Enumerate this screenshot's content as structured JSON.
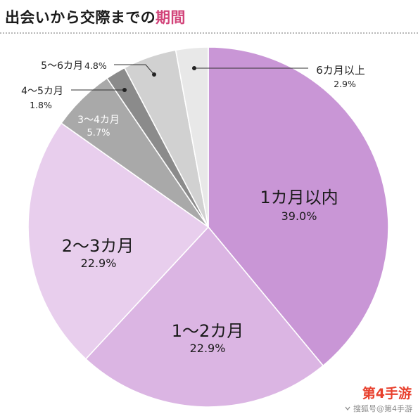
{
  "chart_data": {
    "type": "pie",
    "title": "出会いから交際までの期間",
    "title_highlight": "期間",
    "slices": [
      {
        "label": "1カ月以内",
        "value": 39.0,
        "value_label": "39.0%",
        "color": "#c996d6"
      },
      {
        "label": "1〜2カ月",
        "value": 22.9,
        "value_label": "22.9%",
        "color": "#dbb5e3"
      },
      {
        "label": "2〜3カ月",
        "value": 22.9,
        "value_label": "22.9%",
        "color": "#e8ceed"
      },
      {
        "label": "3〜4カ月",
        "value": 5.7,
        "value_label": "5.7%",
        "color": "#a9a9a9"
      },
      {
        "label": "4〜5カ月",
        "value": 1.8,
        "value_label": "1.8%",
        "color": "#8b8b8b"
      },
      {
        "label": "5〜6カ月",
        "value": 4.8,
        "value_label": "4.8%",
        "color": "#d1d1d1"
      },
      {
        "label": "6カ月以上",
        "value": 2.9,
        "value_label": "2.9%",
        "color": "#e8e8e8"
      }
    ]
  },
  "colors": {
    "title_highlight": "#d2447a",
    "separator": "#ffffff",
    "leader": "#333333"
  },
  "watermark": {
    "brand": "第4手游",
    "source": "搜狐号@第4手游"
  }
}
